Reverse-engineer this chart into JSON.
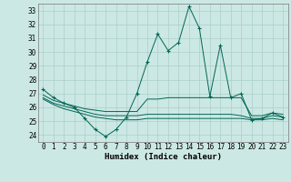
{
  "xlabel": "Humidex (Indice chaleur)",
  "bg_color": "#cce8e4",
  "grid_color": "#aacfc9",
  "line_color": "#006655",
  "xlim": [
    -0.5,
    23.5
  ],
  "ylim": [
    23.5,
    33.5
  ],
  "yticks": [
    24,
    25,
    26,
    27,
    28,
    29,
    30,
    31,
    32,
    33
  ],
  "xticks": [
    0,
    1,
    2,
    3,
    4,
    5,
    6,
    7,
    8,
    9,
    10,
    11,
    12,
    13,
    14,
    15,
    16,
    17,
    18,
    19,
    20,
    21,
    22,
    23
  ],
  "lines": [
    {
      "x": [
        0,
        1,
        2,
        3,
        4,
        5,
        6,
        7,
        8,
        9,
        10,
        11,
        12,
        13,
        14,
        15,
        16,
        17,
        18,
        19,
        20,
        21,
        22,
        23
      ],
      "y": [
        27.3,
        26.7,
        26.3,
        26.0,
        25.2,
        24.4,
        23.9,
        24.4,
        25.3,
        27.0,
        29.3,
        31.3,
        30.1,
        30.7,
        33.3,
        31.7,
        26.8,
        30.5,
        26.7,
        27.0,
        25.1,
        25.2,
        25.6,
        25.3
      ],
      "marker": true
    },
    {
      "x": [
        0,
        1,
        2,
        3,
        4,
        5,
        6,
        7,
        8,
        9,
        10,
        11,
        12,
        13,
        14,
        15,
        16,
        17,
        18,
        19,
        20,
        21,
        22,
        23
      ],
      "y": [
        26.9,
        26.5,
        26.3,
        26.1,
        25.9,
        25.8,
        25.7,
        25.7,
        25.7,
        25.7,
        26.6,
        26.6,
        26.7,
        26.7,
        26.7,
        26.7,
        26.7,
        26.7,
        26.7,
        26.7,
        25.4,
        25.4,
        25.6,
        25.5
      ],
      "marker": false
    },
    {
      "x": [
        0,
        1,
        2,
        3,
        4,
        5,
        6,
        7,
        8,
        9,
        10,
        11,
        12,
        13,
        14,
        15,
        16,
        17,
        18,
        19,
        20,
        21,
        22,
        23
      ],
      "y": [
        26.7,
        26.3,
        26.1,
        25.9,
        25.7,
        25.5,
        25.4,
        25.4,
        25.4,
        25.4,
        25.5,
        25.5,
        25.5,
        25.5,
        25.5,
        25.5,
        25.5,
        25.5,
        25.5,
        25.4,
        25.2,
        25.2,
        25.4,
        25.3
      ],
      "marker": false
    },
    {
      "x": [
        0,
        1,
        2,
        3,
        4,
        5,
        6,
        7,
        8,
        9,
        10,
        11,
        12,
        13,
        14,
        15,
        16,
        17,
        18,
        19,
        20,
        21,
        22,
        23
      ],
      "y": [
        26.6,
        26.2,
        25.9,
        25.7,
        25.5,
        25.3,
        25.2,
        25.1,
        25.1,
        25.1,
        25.2,
        25.2,
        25.2,
        25.2,
        25.2,
        25.2,
        25.2,
        25.2,
        25.2,
        25.2,
        25.1,
        25.1,
        25.2,
        25.1
      ],
      "marker": false
    }
  ]
}
